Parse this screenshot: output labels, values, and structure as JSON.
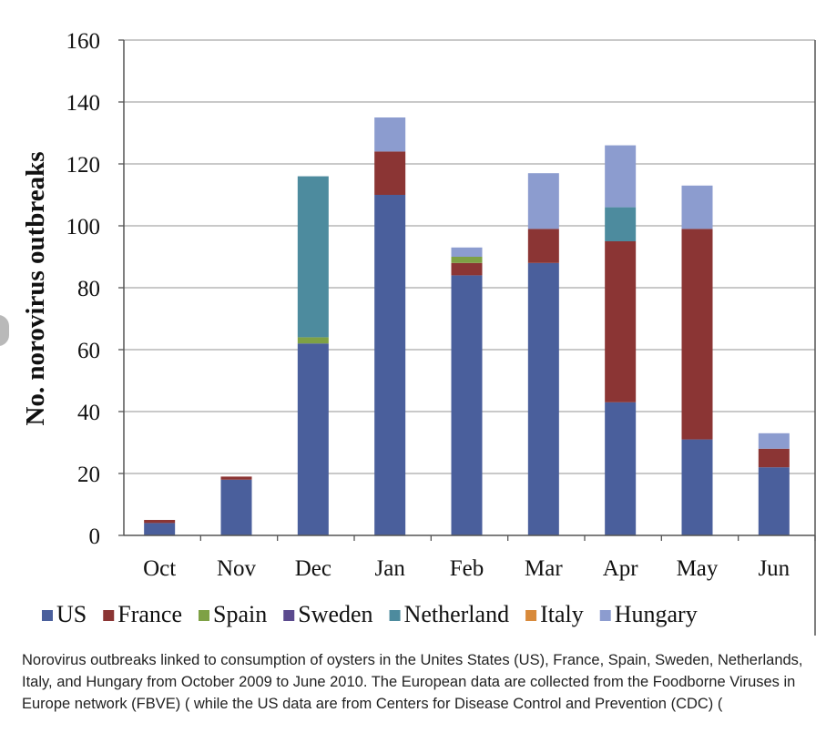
{
  "chart_data": {
    "type": "bar",
    "stacked": true,
    "title": "",
    "xlabel": "",
    "ylabel": "No. norovirus outbreaks",
    "ylim": [
      0,
      160
    ],
    "yticks": [
      0,
      20,
      40,
      60,
      80,
      100,
      120,
      140,
      160
    ],
    "grid": true,
    "legend_position": "bottom",
    "categories": [
      "Oct",
      "Nov",
      "Dec",
      "Jan",
      "Feb",
      "Mar",
      "Apr",
      "May",
      "Jun"
    ],
    "series": [
      {
        "name": "US",
        "color": "#4a5f9c",
        "values": [
          4,
          18,
          62,
          110,
          84,
          88,
          43,
          31,
          22
        ]
      },
      {
        "name": "France",
        "color": "#8b3534",
        "values": [
          1,
          1,
          0,
          14,
          4,
          11,
          52,
          68,
          6
        ]
      },
      {
        "name": "Spain",
        "color": "#7ea145",
        "values": [
          0,
          0,
          2,
          0,
          2,
          0,
          0,
          0,
          0
        ]
      },
      {
        "name": "Sweden",
        "color": "#5b4a8e",
        "values": [
          0,
          0,
          0,
          0,
          0,
          0,
          0,
          0,
          0
        ]
      },
      {
        "name": "Netherland",
        "color": "#4d8b9e",
        "values": [
          0,
          0,
          52,
          0,
          0,
          0,
          11,
          0,
          0
        ]
      },
      {
        "name": "Italy",
        "color": "#d88a3b",
        "values": [
          0,
          0,
          0,
          0,
          0,
          0,
          0,
          0,
          0
        ]
      },
      {
        "name": "Hungary",
        "color": "#8c9ccf",
        "values": [
          0,
          0,
          0,
          11,
          3,
          18,
          20,
          14,
          5
        ]
      }
    ]
  },
  "caption": "Norovirus outbreaks linked to consumption of oysters in the Unites States (US), France, Spain, Sweden, Netherlands, Italy, and Hungary from October 2009 to June 2010. The European data are collected from the Foodborne Viruses in Europe network (FBVE) ( while the US data are from Centers for Disease Control and Prevention (CDC) ("
}
